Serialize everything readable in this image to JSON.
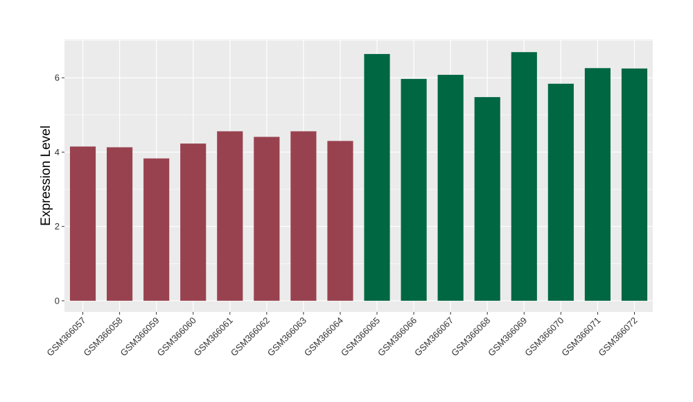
{
  "chart_data": {
    "type": "bar",
    "xlabel": "",
    "ylabel": "Expression Level",
    "ylim": [
      -0.3,
      7.03
    ],
    "yticks": [
      0,
      2,
      4,
      6
    ],
    "grid": true,
    "categories": [
      "GSM366057",
      "GSM366058",
      "GSM366059",
      "GSM366060",
      "GSM366061",
      "GSM366062",
      "GSM366063",
      "GSM366064",
      "GSM366065",
      "GSM366066",
      "GSM366067",
      "GSM366068",
      "GSM366069",
      "GSM366070",
      "GSM366071",
      "GSM366072"
    ],
    "values": [
      4.15,
      4.13,
      3.83,
      4.23,
      4.56,
      4.41,
      4.56,
      4.3,
      6.64,
      5.97,
      6.08,
      5.48,
      6.69,
      5.84,
      6.26,
      6.25
    ],
    "bar_colors": [
      "#99424F",
      "#99424F",
      "#99424F",
      "#99424F",
      "#99424F",
      "#99424F",
      "#99424F",
      "#99424F",
      "#006743",
      "#006743",
      "#006743",
      "#006743",
      "#006743",
      "#006743",
      "#006743",
      "#006743"
    ],
    "panel_background": "#EBEBEB",
    "grid_color": "#FFFFFF"
  }
}
